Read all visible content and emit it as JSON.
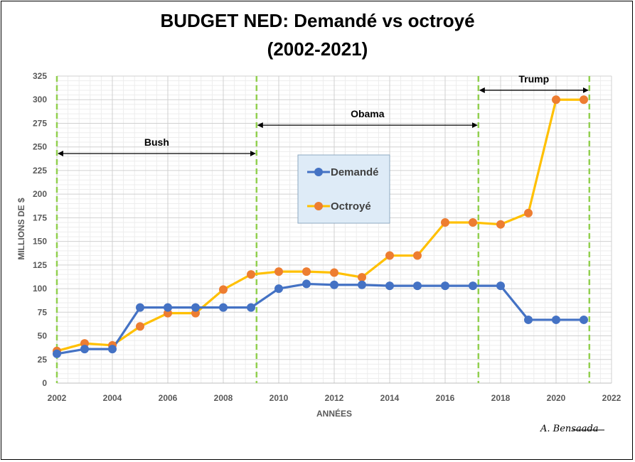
{
  "title_line1": "BUDGET NED: Demandé vs octroyé",
  "title_line2": "(2002-2021)",
  "signature": "A. Bensaada",
  "colors": {
    "demande": "#4472C4",
    "octroye_line": "#FFC000",
    "octroye_marker": "#ED7D31",
    "divider": "#92D050",
    "legend_bg": "#DEEBF7"
  },
  "chart_data": {
    "type": "line",
    "xlabel": "ANNÉES",
    "ylabel": "MILLIONS DE $",
    "xlim": [
      2002,
      2022
    ],
    "ylim": [
      0,
      325
    ],
    "xticks": [
      "2002",
      "2004",
      "2006",
      "2008",
      "2010",
      "2012",
      "2014",
      "2016",
      "2018",
      "2020",
      "2022"
    ],
    "yticks": [
      "0",
      "25",
      "50",
      "75",
      "100",
      "125",
      "150",
      "175",
      "200",
      "225",
      "250",
      "275",
      "300",
      "325"
    ],
    "x": [
      2002,
      2003,
      2004,
      2005,
      2006,
      2007,
      2008,
      2009,
      2010,
      2011,
      2012,
      2013,
      2014,
      2015,
      2016,
      2017,
      2018,
      2019,
      2020,
      2021
    ],
    "series": [
      {
        "name": "Demandé",
        "values": [
          31,
          36,
          36,
          80,
          80,
          80,
          80,
          80,
          100,
          105,
          104,
          104,
          103,
          103,
          103,
          103,
          103,
          67,
          67,
          67
        ]
      },
      {
        "name": "Octroyé",
        "values": [
          34,
          42,
          40,
          60,
          74,
          74,
          99,
          115,
          118,
          118,
          117,
          112,
          135,
          135,
          170,
          170,
          168,
          180,
          300,
          300
        ]
      }
    ],
    "grid": true,
    "legend_position": "center",
    "dividers": [
      2002,
      2009.2,
      2017.2,
      2021.2
    ],
    "annotations": [
      {
        "label": "Bush",
        "from": 2002,
        "to": 2009.2,
        "y": 243
      },
      {
        "label": "Obama",
        "from": 2009.2,
        "to": 2017.2,
        "y": 273
      },
      {
        "label": "Trump",
        "from": 2017.2,
        "to": 2021.2,
        "y": 310
      }
    ]
  }
}
